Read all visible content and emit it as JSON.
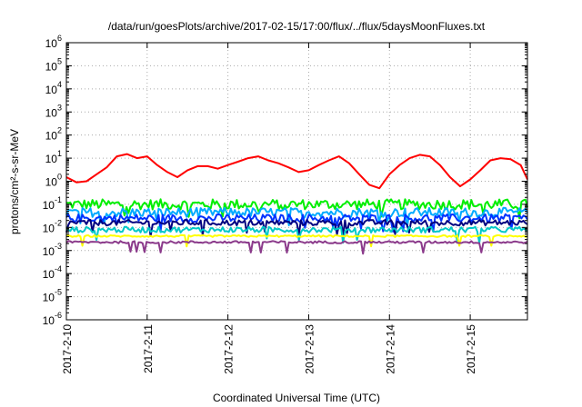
{
  "chart_data": {
    "type": "line",
    "title": "/data/run/goesPlots/archive/2017-02-15/17:00/flux/../flux/5daysMoonFluxes.txt",
    "xlabel": "Coordinated Universal Time (UTC)",
    "ylabel": "protons/cm²-s-sr-MeV",
    "y_scale": "log",
    "ylim": [
      "1e-6",
      "1e6"
    ],
    "xlim": [
      "2017-02-10 00:00",
      "2017-02-15 17:00"
    ],
    "x_ticks": [
      "2017-2-10",
      "2017-2-11",
      "2017-2-12",
      "2017-2-13",
      "2017-2-14",
      "2017-2-15"
    ],
    "y_ticks": [
      {
        "base": "10",
        "exp": "-6"
      },
      {
        "base": "10",
        "exp": "-5"
      },
      {
        "base": "10",
        "exp": "-4"
      },
      {
        "base": "10",
        "exp": "-3"
      },
      {
        "base": "10",
        "exp": "-2"
      },
      {
        "base": "10",
        "exp": "-1"
      },
      {
        "base": "10",
        "exp": "0"
      },
      {
        "base": "10",
        "exp": "1"
      },
      {
        "base": "10",
        "exp": "2"
      },
      {
        "base": "10",
        "exp": "3"
      },
      {
        "base": "10",
        "exp": "4"
      },
      {
        "base": "10",
        "exp": "5"
      },
      {
        "base": "10",
        "exp": "6"
      }
    ],
    "grid": true,
    "legend": "none",
    "series": [
      {
        "color": "#ff0000",
        "x": [
          "2017-02-10 00:00",
          "2017-02-10 03:00",
          "2017-02-10 06:00",
          "2017-02-10 09:00",
          "2017-02-10 12:00",
          "2017-02-10 15:00",
          "2017-02-10 18:00",
          "2017-02-10 21:00",
          "2017-02-11 00:00",
          "2017-02-11 03:00",
          "2017-02-11 06:00",
          "2017-02-11 09:00",
          "2017-02-11 12:00",
          "2017-02-11 15:00",
          "2017-02-11 18:00",
          "2017-02-11 21:00",
          "2017-02-12 00:00",
          "2017-02-12 03:00",
          "2017-02-12 06:00",
          "2017-02-12 09:00",
          "2017-02-12 12:00",
          "2017-02-12 15:00",
          "2017-02-12 18:00",
          "2017-02-12 21:00",
          "2017-02-13 00:00",
          "2017-02-13 03:00",
          "2017-02-13 06:00",
          "2017-02-13 09:00",
          "2017-02-13 12:00",
          "2017-02-13 15:00",
          "2017-02-13 18:00",
          "2017-02-13 21:00",
          "2017-02-14 00:00",
          "2017-02-14 03:00",
          "2017-02-14 06:00",
          "2017-02-14 09:00",
          "2017-02-14 12:00",
          "2017-02-14 15:00",
          "2017-02-14 18:00",
          "2017-02-14 21:00",
          "2017-02-15 00:00",
          "2017-02-15 03:00",
          "2017-02-15 06:00",
          "2017-02-15 09:00",
          "2017-02-15 12:00",
          "2017-02-15 15:00",
          "2017-02-15 17:00"
        ],
        "y": [
          1.5,
          0.9,
          1.0,
          2.0,
          4.0,
          12,
          15,
          10,
          12,
          5,
          2.5,
          1.5,
          3.0,
          4.5,
          4.5,
          3.5,
          5,
          7,
          10,
          12,
          8,
          6,
          4,
          2.5,
          3,
          5,
          8,
          12,
          6,
          2,
          0.7,
          0.5,
          2,
          5,
          10,
          14,
          12,
          5,
          1.5,
          0.6,
          1.2,
          3,
          8,
          10,
          9,
          5,
          1.2
        ]
      },
      {
        "color": "#00ee00",
        "level": 0.1,
        "spread": 0.45
      },
      {
        "color": "#00aaff",
        "level": 0.045,
        "spread": 0.4
      },
      {
        "color": "#0033ff",
        "level": 0.025,
        "spread": 0.35
      },
      {
        "color": "#000080",
        "level": 0.016,
        "spread": 0.25
      },
      {
        "color": "#00c8c8",
        "level": 0.008,
        "spread": 0.25
      },
      {
        "color": "#ffff00",
        "level": 0.0042,
        "spread": 0.08
      },
      {
        "color": "#8b3a8b",
        "level": 0.0023,
        "spread": 0.1
      }
    ]
  }
}
